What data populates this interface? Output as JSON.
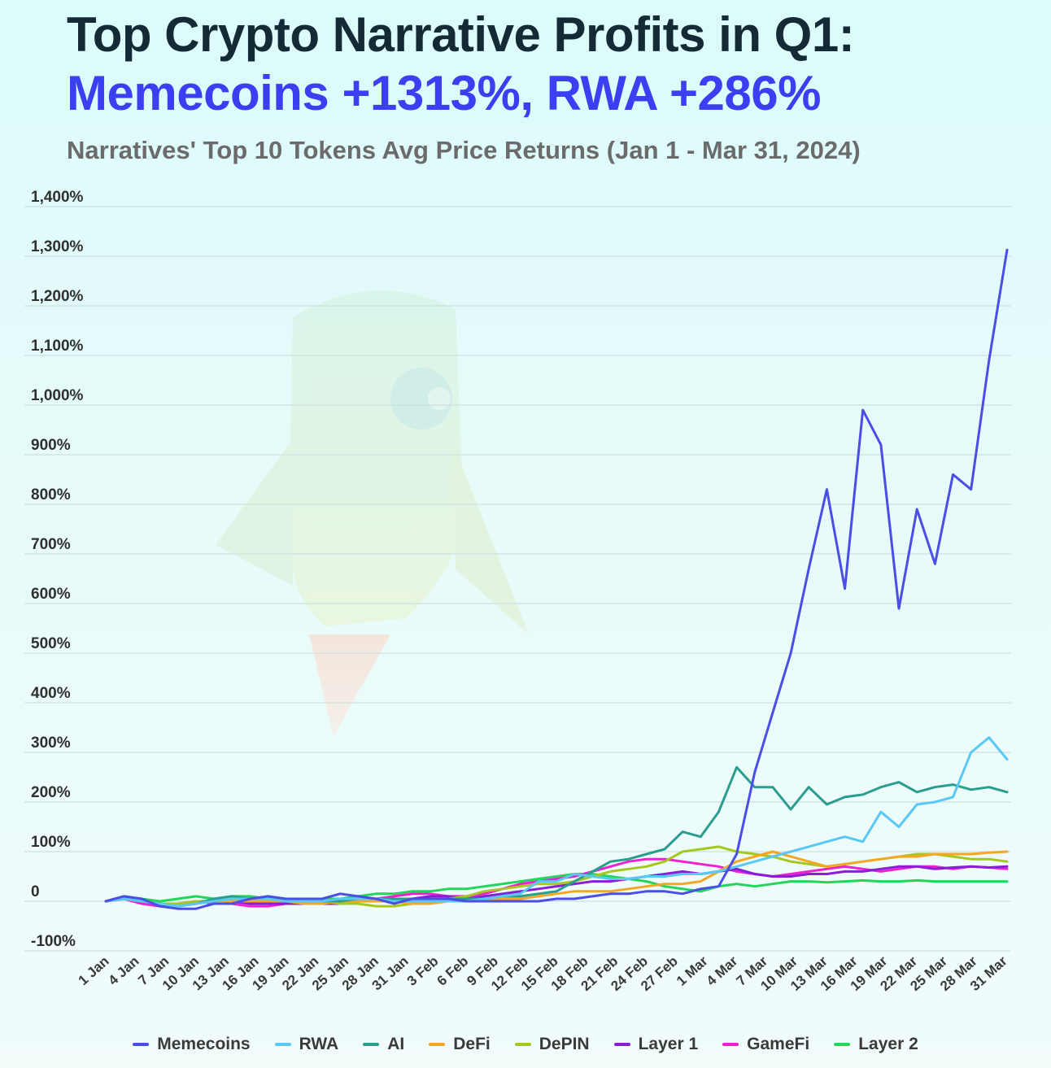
{
  "title_line1": "Top Crypto Narrative Profits in Q1:",
  "title_line2": "Memecoins +1313%, RWA +286%",
  "subtitle": "Narratives' Top 10 Tokens Avg Price Returns (Jan 1 - Mar 31, 2024)",
  "colors": {
    "title": "#142a35",
    "highlight": "#3b3ff2",
    "grid": "#cfe0e0"
  },
  "chart_data": {
    "type": "line",
    "xlabel": "",
    "ylabel": "",
    "ylim": [
      -100,
      1400
    ],
    "yticks": [
      -100,
      0,
      100,
      200,
      300,
      400,
      500,
      600,
      700,
      800,
      900,
      1000,
      1100,
      1200,
      1300,
      1400
    ],
    "ytick_labels": [
      "-100%",
      "0",
      "100%",
      "200%",
      "300%",
      "400%",
      "500%",
      "600%",
      "700%",
      "800%",
      "900%",
      "1,000%",
      "1,100%",
      "1,200%",
      "1,300%",
      "1,400%"
    ],
    "xtick_labels": [
      "1 Jan",
      "4 Jan",
      "7 Jan",
      "10 Jan",
      "13 Jan",
      "16 Jan",
      "19 Jan",
      "22 Jan",
      "25 Jan",
      "28 Jan",
      "31 Jan",
      "3 Feb",
      "6 Feb",
      "9 Feb",
      "12 Feb",
      "15 Feb",
      "18 Feb",
      "21 Feb",
      "24 Feb",
      "27 Feb",
      "1 Mar",
      "4 Mar",
      "7 Mar",
      "10 Mar",
      "13 Mar",
      "16 Mar",
      "19 Mar",
      "22 Mar",
      "25 Mar",
      "28 Mar",
      "31 Mar"
    ],
    "grid": true,
    "legend_position": "bottom",
    "series": [
      {
        "name": "Memecoins",
        "color": "#4a4de6",
        "values": [
          0,
          10,
          5,
          -10,
          -15,
          -15,
          -5,
          -5,
          5,
          10,
          5,
          5,
          5,
          15,
          10,
          5,
          -5,
          5,
          5,
          5,
          0,
          0,
          0,
          0,
          0,
          5,
          5,
          10,
          15,
          15,
          20,
          20,
          15,
          25,
          30,
          95,
          260,
          380,
          500,
          670,
          830,
          630,
          990,
          920,
          590,
          790,
          680,
          860,
          830,
          1090,
          1313
        ]
      },
      {
        "name": "RWA",
        "color": "#5ac8f5",
        "values": [
          0,
          5,
          0,
          -5,
          -10,
          -5,
          0,
          5,
          5,
          5,
          0,
          0,
          0,
          5,
          5,
          5,
          0,
          0,
          0,
          0,
          0,
          5,
          10,
          15,
          40,
          40,
          55,
          50,
          45,
          45,
          50,
          50,
          55,
          55,
          60,
          70,
          80,
          90,
          100,
          110,
          120,
          130,
          120,
          180,
          150,
          195,
          200,
          210,
          300,
          330,
          286
        ]
      },
      {
        "name": "AI",
        "color": "#2a9d8f",
        "values": [
          0,
          5,
          0,
          -5,
          -10,
          -5,
          5,
          10,
          5,
          5,
          5,
          0,
          0,
          0,
          5,
          5,
          5,
          5,
          5,
          5,
          5,
          5,
          10,
          10,
          15,
          20,
          40,
          60,
          80,
          85,
          95,
          105,
          140,
          130,
          180,
          270,
          230,
          230,
          185,
          230,
          195,
          210,
          215,
          230,
          240,
          220,
          230,
          235,
          225,
          230,
          220
        ]
      },
      {
        "name": "DeFi",
        "color": "#f5a623",
        "values": [
          0,
          5,
          0,
          -5,
          -10,
          -5,
          0,
          0,
          0,
          0,
          0,
          -5,
          -5,
          0,
          0,
          0,
          0,
          -5,
          -5,
          0,
          0,
          0,
          5,
          5,
          10,
          15,
          20,
          20,
          20,
          25,
          30,
          35,
          35,
          40,
          60,
          80,
          90,
          100,
          90,
          80,
          70,
          75,
          80,
          85,
          90,
          90,
          95,
          95,
          95,
          98,
          100
        ]
      },
      {
        "name": "DePIN",
        "color": "#a6c71d",
        "values": [
          0,
          5,
          0,
          -5,
          -5,
          0,
          0,
          0,
          0,
          5,
          5,
          0,
          0,
          -5,
          -5,
          -10,
          -10,
          -5,
          0,
          5,
          10,
          20,
          25,
          30,
          35,
          35,
          40,
          50,
          60,
          65,
          70,
          80,
          100,
          105,
          110,
          100,
          95,
          90,
          80,
          75,
          70,
          75,
          80,
          85,
          90,
          95,
          95,
          90,
          85,
          85,
          80
        ]
      },
      {
        "name": "Layer 1",
        "color": "#8a1dd6",
        "values": [
          0,
          5,
          0,
          -5,
          -10,
          -5,
          0,
          0,
          -5,
          -5,
          -5,
          -5,
          -5,
          -5,
          0,
          0,
          5,
          5,
          10,
          10,
          5,
          10,
          15,
          20,
          25,
          30,
          35,
          40,
          40,
          45,
          50,
          55,
          60,
          55,
          60,
          65,
          55,
          50,
          50,
          55,
          55,
          60,
          60,
          65,
          70,
          70,
          65,
          68,
          70,
          68,
          70
        ]
      },
      {
        "name": "GameFi",
        "color": "#f01fd2",
        "values": [
          0,
          5,
          -5,
          -10,
          -5,
          0,
          -5,
          -5,
          -10,
          -10,
          -5,
          -5,
          -5,
          0,
          0,
          5,
          10,
          15,
          15,
          10,
          10,
          15,
          25,
          35,
          40,
          45,
          50,
          60,
          70,
          80,
          85,
          85,
          80,
          75,
          70,
          60,
          55,
          50,
          55,
          60,
          65,
          70,
          65,
          60,
          65,
          70,
          70,
          65,
          70,
          68,
          65
        ]
      },
      {
        "name": "Layer 2",
        "color": "#22d65a",
        "values": [
          0,
          10,
          5,
          0,
          5,
          10,
          5,
          10,
          10,
          5,
          0,
          0,
          5,
          5,
          10,
          15,
          15,
          20,
          20,
          25,
          25,
          30,
          35,
          40,
          45,
          50,
          55,
          55,
          50,
          45,
          40,
          30,
          25,
          20,
          30,
          35,
          30,
          35,
          40,
          40,
          38,
          40,
          42,
          40,
          40,
          42,
          40,
          40,
          40,
          40,
          40
        ]
      }
    ]
  }
}
